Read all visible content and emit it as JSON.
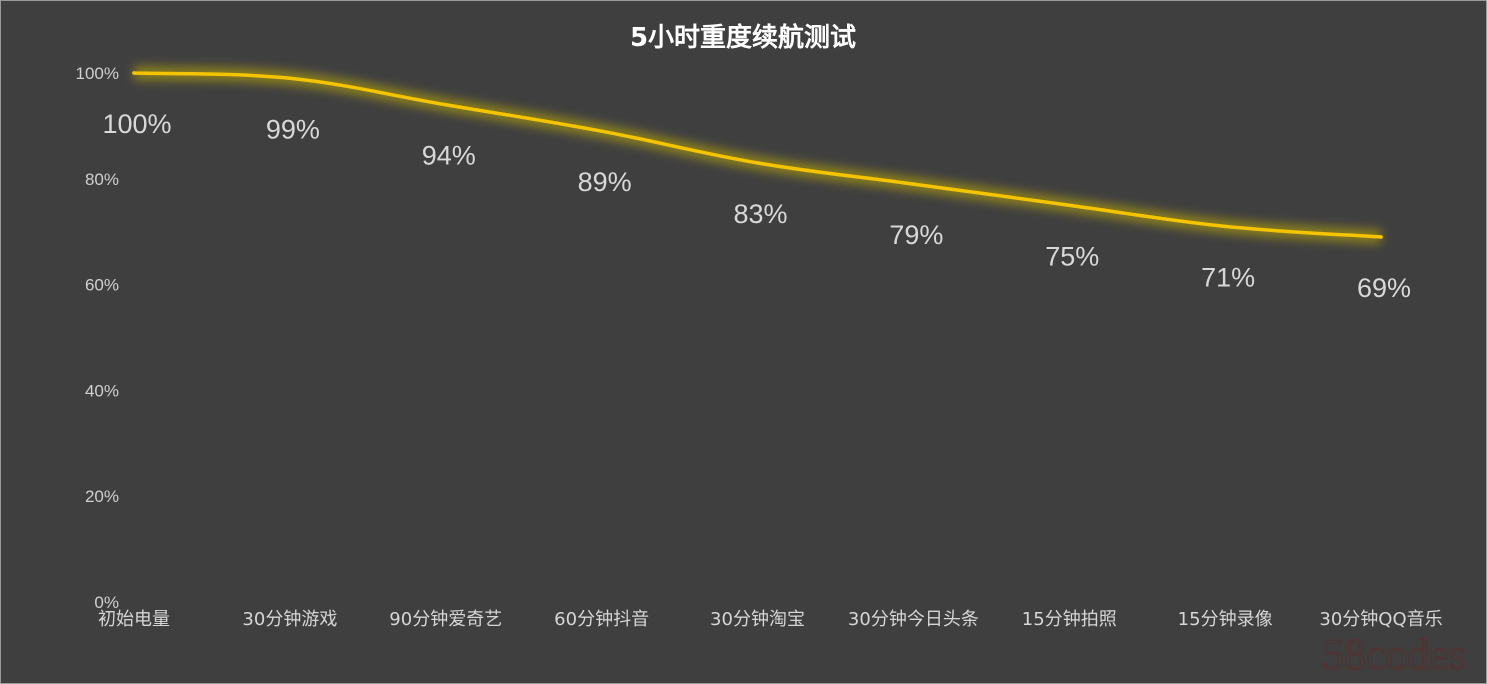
{
  "watermark": "58codes",
  "chart_data": {
    "type": "line",
    "title": "5小时重度续航测试",
    "xlabel": "",
    "ylabel": "",
    "categories": [
      "初始电量",
      "30分钟游戏",
      "90分钟爱奇艺",
      "60分钟抖音",
      "30分钟淘宝",
      "30分钟今日头条",
      "15分钟拍照",
      "15分钟录像",
      "30分钟QQ音乐"
    ],
    "series": [
      {
        "values": [
          100,
          99,
          94,
          89,
          83,
          79,
          75,
          71,
          69
        ],
        "color": "#f5c400"
      }
    ],
    "data_labels": [
      "100%",
      "99%",
      "94%",
      "89%",
      "83%",
      "79%",
      "75%",
      "71%",
      "69%"
    ],
    "yticks": [
      {
        "value": 0,
        "label": "0%"
      },
      {
        "value": 20,
        "label": "20%"
      },
      {
        "value": 40,
        "label": "40%"
      },
      {
        "value": 60,
        "label": "60%"
      },
      {
        "value": 80,
        "label": "80%"
      },
      {
        "value": 100,
        "label": "100%"
      }
    ],
    "ylim": [
      0,
      100
    ],
    "grid": false,
    "legend": "none",
    "colors": {
      "background": "#3f3f3f",
      "line": "#f5c400",
      "glow": "#c8b400"
    }
  }
}
